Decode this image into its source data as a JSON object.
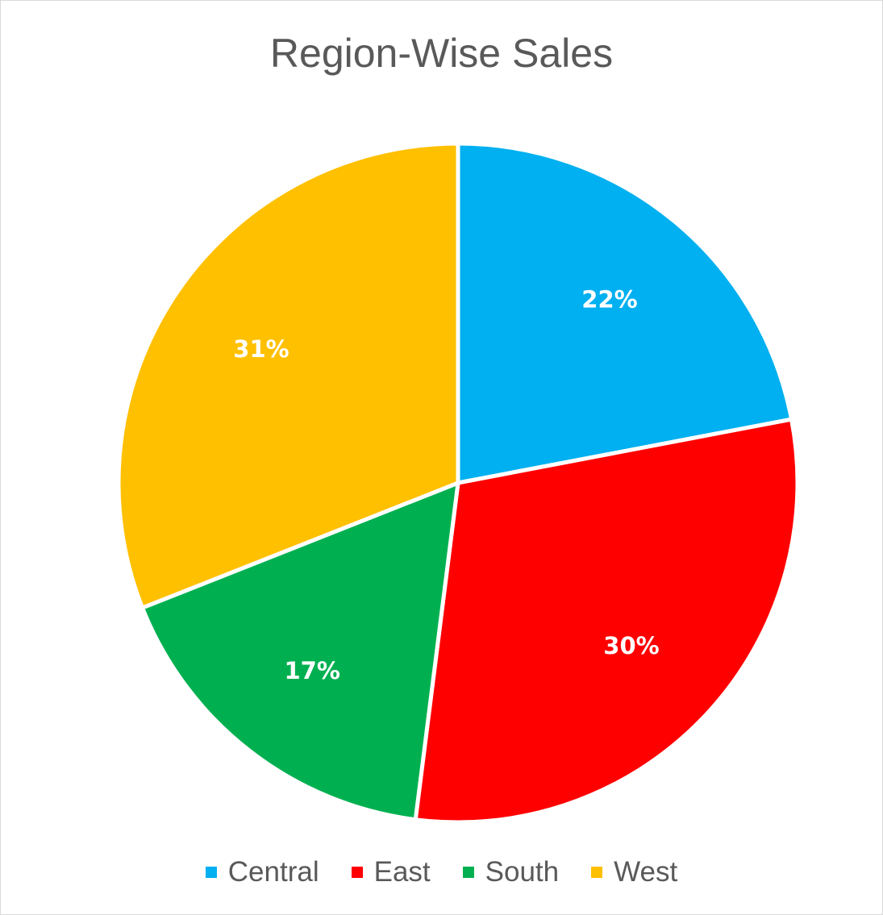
{
  "chart_data": {
    "type": "pie",
    "title": "Region-Wise Sales",
    "categories": [
      "Central",
      "East",
      "South",
      "West"
    ],
    "values": [
      22,
      30,
      17,
      31
    ],
    "data_labels": [
      "22%",
      "30%",
      "17%",
      "31%"
    ],
    "colors": [
      "#00b0f0",
      "#ff0000",
      "#00b050",
      "#ffc000"
    ],
    "legend_position": "bottom",
    "start_angle": "12 o'clock",
    "direction": "clockwise"
  }
}
